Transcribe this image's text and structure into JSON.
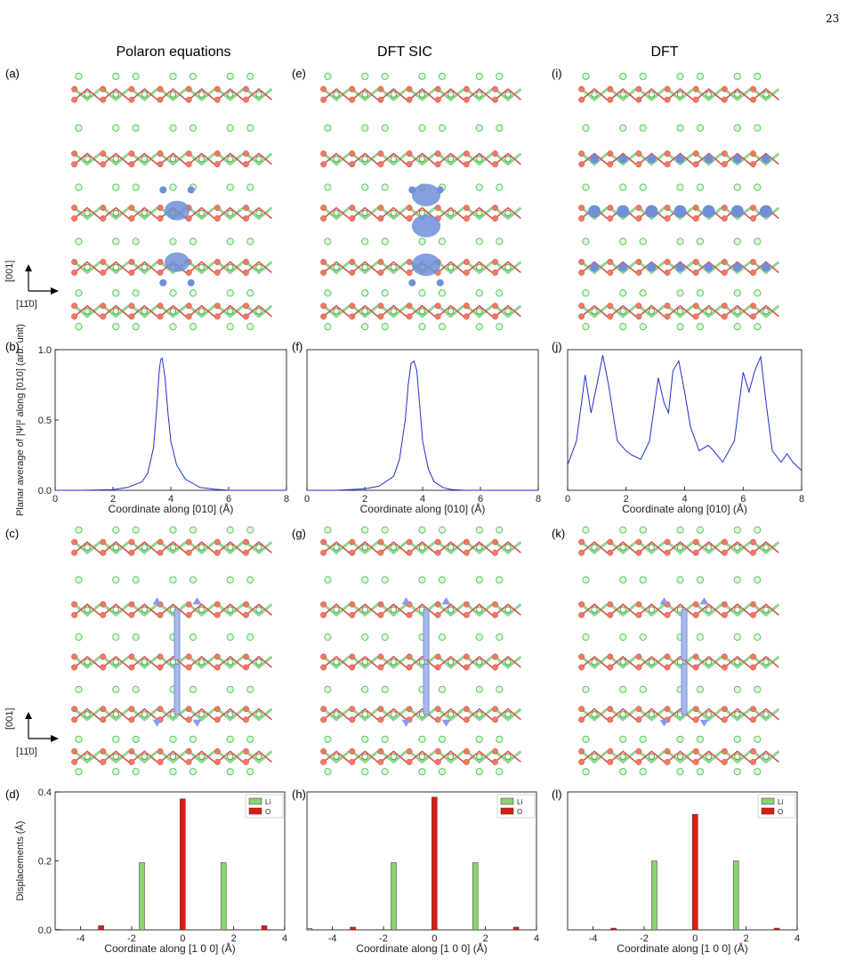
{
  "page_number": "23",
  "columns": [
    "Polaron equations",
    "DFT SIC",
    "DFT"
  ],
  "panel_labels": {
    "a": "(a)",
    "b": "(b)",
    "c": "(c)",
    "d": "(d)",
    "e": "(e)",
    "f": "(f)",
    "g": "(g)",
    "h": "(h)",
    "i": "(i)",
    "j": "(j)",
    "k": "(k)",
    "l": "(l)"
  },
  "axes_indicator": {
    "vertical": "[001]",
    "horizontal": "[11̄0]"
  },
  "colors": {
    "li": "#9ee29e",
    "o": "#f07a5f",
    "bond_li": "#8fd68f",
    "bond_o": "#d9534f",
    "density": "#6f8fd8",
    "curve": "#1f2fd0",
    "bar_li": "#8ad46f",
    "bar_o": "#e01a12"
  },
  "chart_data": [
    {
      "type": "line",
      "panel": "b",
      "xlabel": "Coordinate along [010] (Å)",
      "ylabel": "Planar average of |Ψ|² along [010] (arb. unit)",
      "xlim": [
        0,
        8
      ],
      "ylim": [
        0,
        1.0
      ],
      "xticks": [
        "0",
        "2",
        "4",
        "6",
        "8"
      ],
      "yticks": [
        "0.0",
        "0.5",
        "1.0"
      ],
      "x": [
        0.0,
        1.0,
        2.0,
        2.5,
        3.0,
        3.2,
        3.4,
        3.5,
        3.6,
        3.65,
        3.7,
        3.8,
        3.9,
        4.0,
        4.2,
        4.5,
        5.0,
        5.5,
        6.0,
        7.0,
        8.0
      ],
      "y": [
        0.0,
        0.0,
        0.005,
        0.02,
        0.06,
        0.12,
        0.3,
        0.55,
        0.85,
        0.93,
        0.94,
        0.8,
        0.55,
        0.35,
        0.18,
        0.08,
        0.02,
        0.008,
        0.0,
        0.0,
        0.0
      ]
    },
    {
      "type": "line",
      "panel": "f",
      "xlabel": "Coordinate along [010] (Å)",
      "xlim": [
        0,
        8
      ],
      "ylim": [
        0,
        1.0
      ],
      "xticks": [
        "0",
        "2",
        "4",
        "6",
        "8"
      ],
      "x": [
        0.0,
        1.0,
        2.0,
        2.5,
        3.0,
        3.2,
        3.4,
        3.5,
        3.6,
        3.7,
        3.8,
        3.9,
        4.0,
        4.2,
        4.4,
        4.7,
        5.0,
        5.5,
        6.0,
        8.0
      ],
      "y": [
        0.0,
        0.0,
        0.01,
        0.03,
        0.1,
        0.22,
        0.5,
        0.75,
        0.9,
        0.92,
        0.85,
        0.6,
        0.35,
        0.15,
        0.06,
        0.02,
        0.005,
        0.0,
        0.0,
        0.0
      ]
    },
    {
      "type": "line",
      "panel": "j",
      "xlabel": "Coordinate along [010] (Å)",
      "xlim": [
        0,
        8
      ],
      "ylim": [
        0,
        1.0
      ],
      "xticks": [
        "0",
        "2",
        "4",
        "6",
        "8"
      ],
      "x": [
        0.0,
        0.3,
        0.6,
        0.8,
        1.0,
        1.2,
        1.4,
        1.7,
        2.0,
        2.2,
        2.5,
        2.8,
        3.1,
        3.3,
        3.45,
        3.6,
        3.8,
        4.0,
        4.2,
        4.5,
        4.8,
        5.0,
        5.3,
        5.7,
        6.0,
        6.2,
        6.4,
        6.6,
        6.8,
        7.0,
        7.3,
        7.5,
        7.7,
        8.0
      ],
      "y": [
        0.18,
        0.35,
        0.82,
        0.55,
        0.75,
        0.96,
        0.75,
        0.35,
        0.28,
        0.25,
        0.22,
        0.35,
        0.8,
        0.62,
        0.55,
        0.85,
        0.92,
        0.7,
        0.45,
        0.28,
        0.32,
        0.28,
        0.2,
        0.35,
        0.84,
        0.7,
        0.85,
        0.95,
        0.6,
        0.28,
        0.2,
        0.26,
        0.2,
        0.14
      ]
    },
    {
      "type": "bar",
      "panel": "d",
      "xlabel": "Coordinate along [1 0 0] (Å)",
      "ylabel": "Displacements (Å)",
      "xlim": [
        -5,
        4
      ],
      "ylim": [
        0,
        0.4
      ],
      "xticks": [
        "-4",
        "-2",
        "0",
        "2",
        "4"
      ],
      "yticks": [
        "0.0",
        "0.2",
        "0.4"
      ],
      "legend": [
        "Li",
        "O"
      ],
      "series": [
        {
          "name": "Li",
          "x": [
            -4.9,
            -1.6,
            1.6
          ],
          "values": [
            0.002,
            0.195,
            0.195
          ]
        },
        {
          "name": "O",
          "x": [
            -3.2,
            0.0,
            3.2
          ],
          "values": [
            0.012,
            0.38,
            0.012
          ]
        }
      ]
    },
    {
      "type": "bar",
      "panel": "h",
      "xlabel": "Coordinate along [1 0 0] (Å)",
      "xlim": [
        -5,
        4
      ],
      "ylim": [
        0,
        0.4
      ],
      "xticks": [
        "-4",
        "-2",
        "0",
        "2",
        "4"
      ],
      "legend": [
        "Li",
        "O"
      ],
      "series": [
        {
          "name": "Li",
          "x": [
            -4.9,
            -1.6,
            1.6
          ],
          "values": [
            0.004,
            0.195,
            0.195
          ]
        },
        {
          "name": "O",
          "x": [
            -3.2,
            0.0,
            3.2
          ],
          "values": [
            0.008,
            0.385,
            0.008
          ]
        }
      ]
    },
    {
      "type": "bar",
      "panel": "l",
      "xlabel": "Coordinate along [1 0 0] (Å)",
      "xlim": [
        -5,
        4
      ],
      "ylim": [
        0,
        0.4
      ],
      "xticks": [
        "-4",
        "-2",
        "0",
        "2",
        "4"
      ],
      "legend": [
        "Li",
        "O"
      ],
      "series": [
        {
          "name": "Li",
          "x": [
            -1.6,
            1.6
          ],
          "values": [
            0.2,
            0.2
          ]
        },
        {
          "name": "O",
          "x": [
            -3.2,
            0.0,
            3.2
          ],
          "values": [
            0.005,
            0.335,
            0.005
          ]
        }
      ]
    }
  ]
}
